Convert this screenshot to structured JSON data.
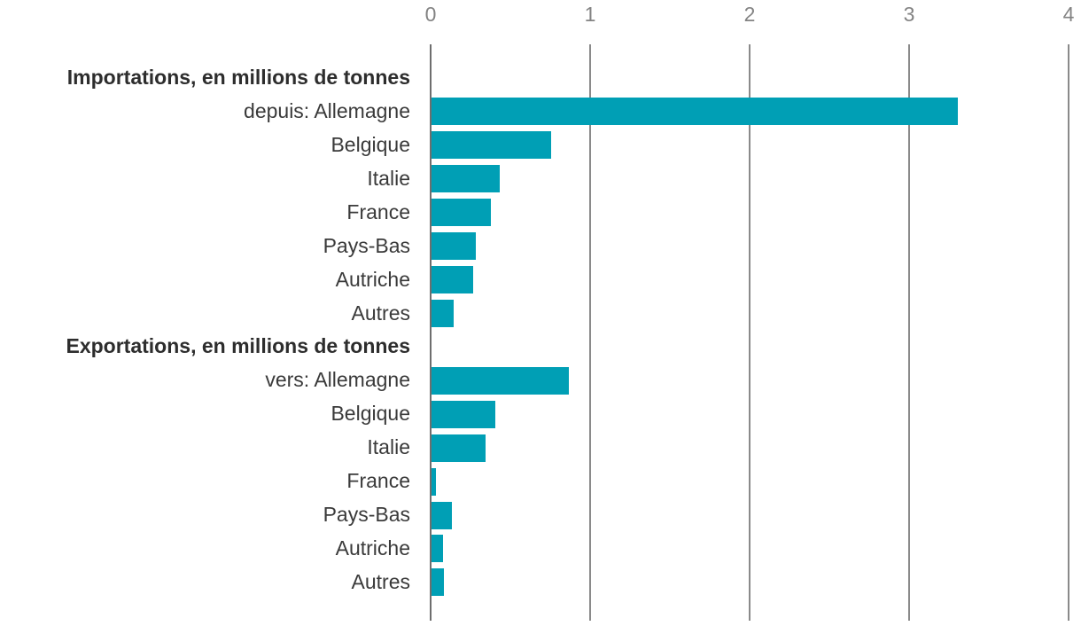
{
  "chart_data": {
    "type": "bar",
    "orientation": "horizontal",
    "unit": "millions de tonnes",
    "axis": {
      "position": "top",
      "min": 0,
      "max": 4,
      "ticks": [
        0,
        1,
        2,
        3,
        4
      ]
    },
    "sections": [
      {
        "header": "Importations, en millions de tonnes",
        "rows": [
          {
            "label": "depuis: Allemagne",
            "value": 3.3
          },
          {
            "label": "Belgique",
            "value": 0.75
          },
          {
            "label": "Italie",
            "value": 0.43
          },
          {
            "label": "France",
            "value": 0.37
          },
          {
            "label": "Pays-Bas",
            "value": 0.28
          },
          {
            "label": "Autriche",
            "value": 0.26
          },
          {
            "label": "Autres",
            "value": 0.14
          }
        ]
      },
      {
        "header": "Exportations, en millions de tonnes",
        "rows": [
          {
            "label": "vers: Allemagne",
            "value": 0.86
          },
          {
            "label": "Belgique",
            "value": 0.4
          },
          {
            "label": "Italie",
            "value": 0.34
          },
          {
            "label": "France",
            "value": 0.03
          },
          {
            "label": "Pays-Bas",
            "value": 0.13
          },
          {
            "label": "Autriche",
            "value": 0.07
          },
          {
            "label": "Autres",
            "value": 0.08
          }
        ]
      }
    ],
    "colors": {
      "bar": "#009fb5",
      "gridline": "#8a8a8a",
      "axis_line": "#6e6e6e",
      "label": "#3a3a3a",
      "header": "#2d2d2d",
      "tick_label": "#838383",
      "background": "#ffffff"
    }
  }
}
